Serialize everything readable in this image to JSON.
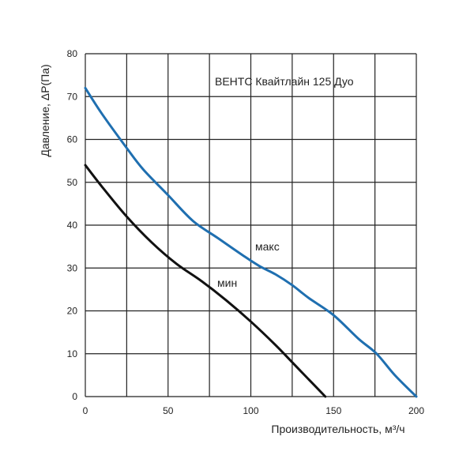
{
  "chart_data": {
    "type": "line",
    "title": "ВЕНТС Квайтлайн 125 Дуо",
    "xlabel": "Производительность, м³/ч",
    "ylabel": "Давление, ΔР(Па)",
    "xlim": [
      0,
      200
    ],
    "ylim": [
      0,
      80
    ],
    "x_ticks": [
      0,
      50,
      100,
      150,
      200
    ],
    "y_ticks": [
      0,
      10,
      20,
      30,
      40,
      50,
      60,
      70,
      80
    ],
    "grid": true,
    "series": [
      {
        "name": "макс",
        "color": "#1f6fb0",
        "x": [
          0,
          10,
          25,
          35,
          50,
          65,
          80,
          95,
          105,
          115,
          125,
          135,
          150,
          165,
          176,
          187,
          200
        ],
        "y": [
          72,
          66,
          58,
          53,
          47,
          41,
          37,
          33,
          30.5,
          28.5,
          26,
          23,
          19,
          13.5,
          10,
          5,
          0
        ]
      },
      {
        "name": "мин",
        "color": "#111111",
        "x": [
          0,
          10,
          25,
          40,
          55,
          70,
          85,
          100,
          115,
          125,
          135,
          145
        ],
        "y": [
          54,
          49,
          42,
          36,
          31,
          27,
          22.5,
          17.5,
          12,
          8,
          4,
          0
        ]
      }
    ]
  },
  "colors": {
    "grid": "#222222",
    "text": "#222222",
    "background": "#ffffff"
  }
}
